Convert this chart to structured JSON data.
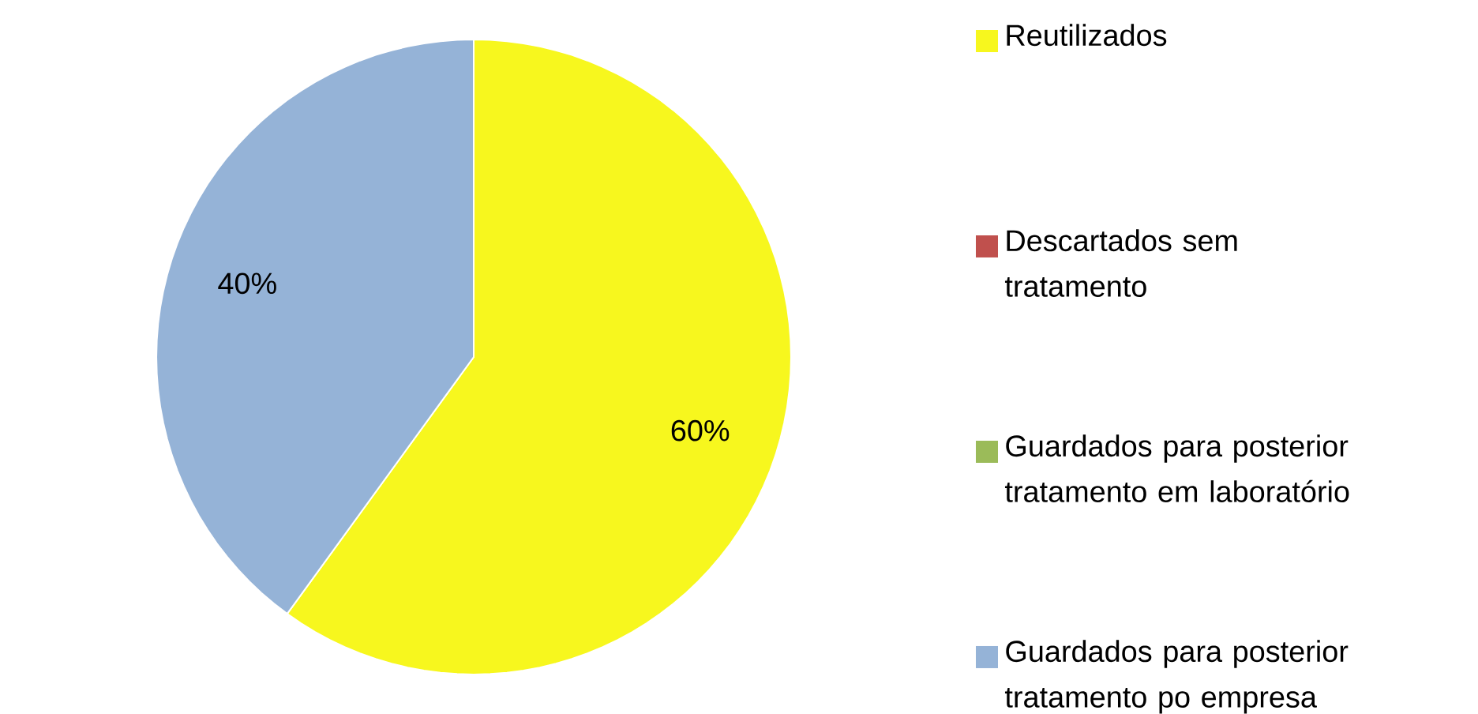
{
  "chart_data": {
    "type": "pie",
    "categories": [
      "Reutilizados",
      "Descartados sem tratamento",
      "Guardados para posterior tratamento em laboratório",
      "Guardados para posterior tratamento po empresa"
    ],
    "values": [
      60,
      0,
      0,
      40
    ],
    "colors": [
      "#f7f71e",
      "#c0504d",
      "#9bbb59",
      "#95b3d7"
    ],
    "value_labels": [
      "60%",
      null,
      null,
      "40%"
    ],
    "legend": "right"
  }
}
